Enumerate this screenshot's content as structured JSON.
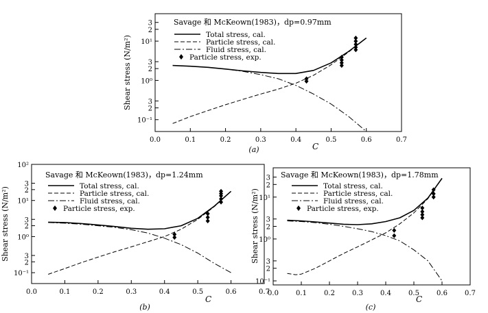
{
  "chart_data": [
    {
      "type": "line",
      "title": "Savage 和 McKeown(1983)，dp=0.97mm",
      "caption": "(a)",
      "xlabel": "C",
      "ylabel": "Shear stress (N/m²)",
      "xlim": [
        0.0,
        0.7
      ],
      "yscale": "log",
      "ylim": [
        0.05,
        50
      ],
      "x_ticks": [
        "0.0",
        "0.1",
        "0.2",
        "0.3",
        "0.4",
        "0.5",
        "0.6",
        "0.7"
      ],
      "y_ticks": [
        {
          "v": 30,
          "t": "3"
        },
        {
          "v": 20,
          "t": "2"
        },
        {
          "v": 10,
          "t": "10¹"
        },
        {
          "v": 3,
          "t": "3"
        },
        {
          "v": 2,
          "t": "2"
        },
        {
          "v": 1,
          "t": "10⁰"
        },
        {
          "v": 0.3,
          "t": "3"
        },
        {
          "v": 0.2,
          "t": "2"
        },
        {
          "v": 0.1,
          "t": "10⁻¹"
        }
      ],
      "legend": [
        "Total stress, cal.",
        "Particle stress, cal.",
        "Fluid stress, cal.",
        "Particle stress, exp."
      ],
      "series": [
        {
          "name": "Total stress, cal.",
          "style": "solid",
          "x": [
            0.05,
            0.1,
            0.15,
            0.2,
            0.25,
            0.3,
            0.35,
            0.4,
            0.45,
            0.5,
            0.55,
            0.6
          ],
          "y": [
            2.4,
            2.3,
            2.15,
            1.95,
            1.75,
            1.6,
            1.5,
            1.5,
            1.8,
            2.8,
            5.5,
            12
          ]
        },
        {
          "name": "Particle stress, cal.",
          "style": "dashed",
          "x": [
            0.05,
            0.1,
            0.15,
            0.2,
            0.25,
            0.3,
            0.35,
            0.4,
            0.45,
            0.5,
            0.55,
            0.6
          ],
          "y": [
            0.08,
            0.12,
            0.17,
            0.24,
            0.33,
            0.45,
            0.6,
            0.85,
            1.35,
            2.5,
            5.3,
            12
          ]
        },
        {
          "name": "Fluid stress, cal.",
          "style": "dashdot",
          "x": [
            0.05,
            0.1,
            0.15,
            0.2,
            0.25,
            0.3,
            0.35,
            0.4,
            0.45,
            0.5,
            0.55,
            0.6
          ],
          "y": [
            2.4,
            2.3,
            2.15,
            1.95,
            1.7,
            1.4,
            1.1,
            0.75,
            0.45,
            0.25,
            0.12,
            0.05
          ]
        },
        {
          "name": "Particle stress, exp.",
          "style": "marker",
          "x": [
            0.43,
            0.43,
            0.53,
            0.53,
            0.53,
            0.53,
            0.57,
            0.57,
            0.57,
            0.57,
            0.57
          ],
          "y": [
            0.95,
            1.1,
            2.4,
            2.8,
            3.3,
            3.9,
            6,
            7,
            8.3,
            10,
            12
          ]
        }
      ]
    },
    {
      "type": "line",
      "title": "Savage 和 McKeown(1983)，dp=1.24mm",
      "caption": "(b)",
      "xlabel": "C",
      "ylabel": "Shear stress (N/m²)",
      "xlim": [
        0.0,
        0.7
      ],
      "yscale": "log",
      "ylim": [
        0.05,
        100
      ],
      "x_ticks": [
        "0.0",
        "0.1",
        "0.2",
        "0.3",
        "0.4",
        "0.5",
        "0.6",
        "0.7"
      ],
      "y_ticks": [
        {
          "v": 100,
          "t": "10²"
        },
        {
          "v": 30,
          "t": "3"
        },
        {
          "v": 20,
          "t": "2"
        },
        {
          "v": 10,
          "t": "10¹"
        },
        {
          "v": 3,
          "t": "3"
        },
        {
          "v": 2,
          "t": "2"
        },
        {
          "v": 1,
          "t": "10⁰"
        },
        {
          "v": 0.3,
          "t": "3"
        },
        {
          "v": 0.2,
          "t": "2"
        },
        {
          "v": 0.1,
          "t": "10⁻¹"
        }
      ],
      "legend": [
        "Total stress, cal.",
        "Particle stress, cal.",
        "Fluid stress, cal.",
        "Particle stress, exp."
      ],
      "series": [
        {
          "name": "Total stress, cal.",
          "style": "solid",
          "x": [
            0.05,
            0.1,
            0.15,
            0.2,
            0.25,
            0.3,
            0.35,
            0.4,
            0.45,
            0.5,
            0.55,
            0.6
          ],
          "y": [
            2.5,
            2.45,
            2.3,
            2.1,
            1.9,
            1.7,
            1.6,
            1.65,
            2.0,
            3.2,
            7,
            18
          ]
        },
        {
          "name": "Particle stress, cal.",
          "style": "dashed",
          "x": [
            0.05,
            0.1,
            0.15,
            0.2,
            0.25,
            0.3,
            0.35,
            0.4,
            0.45,
            0.5,
            0.55,
            0.6
          ],
          "y": [
            0.09,
            0.13,
            0.19,
            0.27,
            0.38,
            0.52,
            0.72,
            1.0,
            1.6,
            3.0,
            6.8,
            18
          ]
        },
        {
          "name": "Fluid stress, cal.",
          "style": "dashdot",
          "x": [
            0.05,
            0.1,
            0.15,
            0.2,
            0.25,
            0.3,
            0.35,
            0.4,
            0.45,
            0.5,
            0.55,
            0.6
          ],
          "y": [
            2.45,
            2.35,
            2.2,
            2.0,
            1.8,
            1.55,
            1.25,
            0.9,
            0.6,
            0.35,
            0.18,
            0.1
          ]
        },
        {
          "name": "Particle stress, exp.",
          "style": "marker",
          "x": [
            0.43,
            0.43,
            0.53,
            0.53,
            0.53,
            0.57,
            0.57,
            0.57,
            0.57,
            0.57
          ],
          "y": [
            0.95,
            1.15,
            2.7,
            3.4,
            4.3,
            9,
            11,
            13.5,
            15.5,
            18
          ]
        }
      ]
    },
    {
      "type": "line",
      "title": "Savage 和 McKeown(1983)，dp=1.78mm",
      "caption": "(c)",
      "xlabel": "C",
      "ylabel": "Shear stress (N/m²)",
      "xlim": [
        0.0,
        0.7
      ],
      "yscale": "log",
      "ylim": [
        0.08,
        50
      ],
      "x_ticks": [
        "0.0",
        "0.1",
        "0.2",
        "0.3",
        "0.4",
        "0.5",
        "0.6",
        "0.7"
      ],
      "y_ticks": [
        {
          "v": 30,
          "t": "3"
        },
        {
          "v": 20,
          "t": "2"
        },
        {
          "v": 10,
          "t": "10¹"
        },
        {
          "v": 3,
          "t": "3"
        },
        {
          "v": 2,
          "t": "2"
        },
        {
          "v": 1,
          "t": "10⁰"
        },
        {
          "v": 0.3,
          "t": "3"
        },
        {
          "v": 0.2,
          "t": "2"
        },
        {
          "v": 0.1,
          "t": "10⁻¹"
        }
      ],
      "legend": [
        "Total stress, cal.",
        "Particle stress, cal.",
        "Fluid stress, cal.",
        "Particle stress, exp."
      ],
      "series": [
        {
          "name": "Total stress, cal.",
          "style": "solid",
          "x": [
            0.05,
            0.1,
            0.15,
            0.2,
            0.25,
            0.3,
            0.35,
            0.4,
            0.45,
            0.5,
            0.55,
            0.6
          ],
          "y": [
            2.8,
            2.7,
            2.55,
            2.4,
            2.25,
            2.2,
            2.3,
            2.6,
            3.2,
            4.8,
            9.5,
            28
          ]
        },
        {
          "name": "Particle stress, cal.",
          "style": "dashed",
          "x": [
            0.05,
            0.08,
            0.1,
            0.15,
            0.2,
            0.25,
            0.3,
            0.35,
            0.4,
            0.45,
            0.5,
            0.55,
            0.6
          ],
          "y": [
            0.15,
            0.14,
            0.145,
            0.2,
            0.3,
            0.45,
            0.65,
            0.95,
            1.4,
            2.3,
            4.2,
            9.2,
            28
          ]
        },
        {
          "name": "Fluid stress, cal.",
          "style": "dashdot",
          "x": [
            0.05,
            0.1,
            0.15,
            0.2,
            0.25,
            0.3,
            0.35,
            0.4,
            0.45,
            0.5,
            0.55,
            0.6
          ],
          "y": [
            2.7,
            2.6,
            2.45,
            2.25,
            2.0,
            1.75,
            1.5,
            1.2,
            0.9,
            0.55,
            0.3,
            0.1
          ]
        },
        {
          "name": "Particle stress, exp.",
          "style": "marker",
          "x": [
            0.43,
            0.43,
            0.53,
            0.53,
            0.53,
            0.53,
            0.57,
            0.57,
            0.57
          ],
          "y": [
            1.2,
            1.6,
            3.2,
            3.8,
            4.5,
            5.5,
            10,
            12,
            15
          ]
        }
      ]
    }
  ]
}
